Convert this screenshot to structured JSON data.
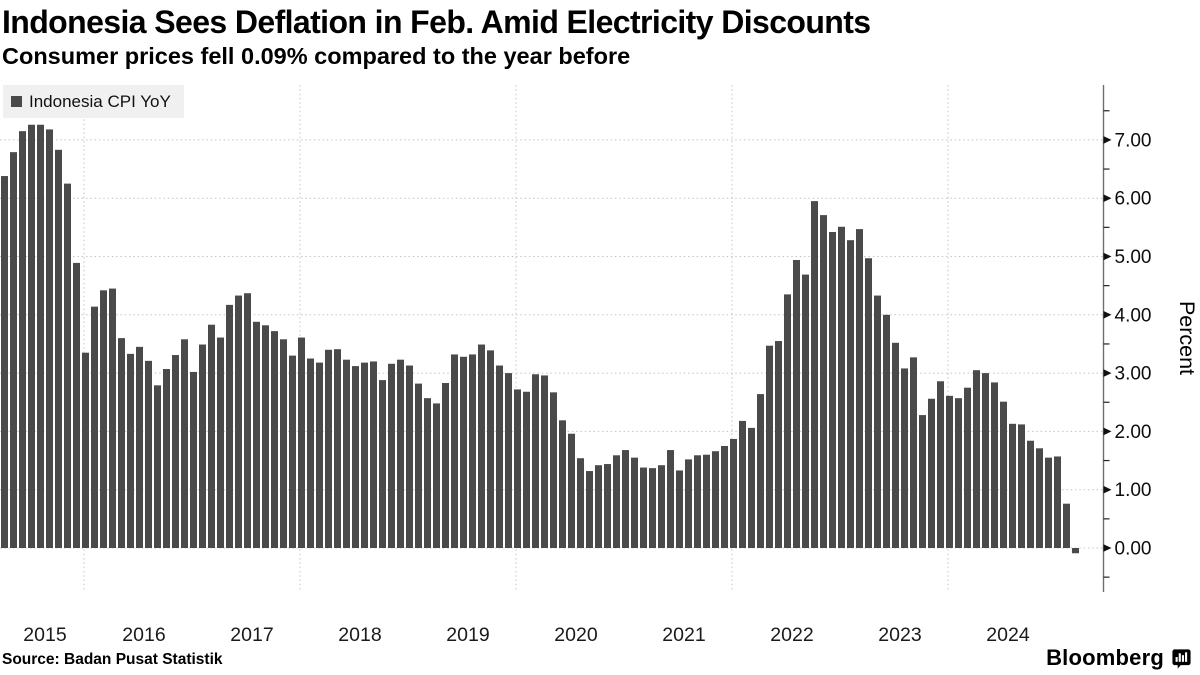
{
  "header": {
    "title": "Indonesia Sees Deflation in Feb. Amid Electricity Discounts",
    "subtitle": "Consumer prices fell 0.09% compared to the year before"
  },
  "legend": {
    "label": "Indonesia CPI YoY"
  },
  "chart_data": {
    "type": "bar",
    "title": "Indonesia Sees Deflation in Feb. Amid Electricity Discounts",
    "subtitle": "Consumer prices fell 0.09% compared to the year before",
    "series": [
      {
        "name": "Indonesia CPI YoY",
        "start_month": "2015-03",
        "end_month": "2025-02",
        "frequency": "monthly",
        "values": [
          6.38,
          6.79,
          7.15,
          7.26,
          7.26,
          7.18,
          6.83,
          6.25,
          4.89,
          3.35,
          4.14,
          4.42,
          4.45,
          3.6,
          3.33,
          3.45,
          3.21,
          2.79,
          3.07,
          3.31,
          3.58,
          3.02,
          3.49,
          3.83,
          3.61,
          4.17,
          4.33,
          4.37,
          3.88,
          3.82,
          3.72,
          3.58,
          3.3,
          3.61,
          3.25,
          3.18,
          3.4,
          3.41,
          3.23,
          3.12,
          3.18,
          3.2,
          2.88,
          3.16,
          3.23,
          3.13,
          2.82,
          2.57,
          2.48,
          2.83,
          3.32,
          3.28,
          3.32,
          3.49,
          3.39,
          3.13,
          3.0,
          2.72,
          2.68,
          2.98,
          2.96,
          2.67,
          2.19,
          1.96,
          1.54,
          1.32,
          1.42,
          1.44,
          1.59,
          1.68,
          1.55,
          1.38,
          1.37,
          1.42,
          1.68,
          1.33,
          1.52,
          1.59,
          1.6,
          1.66,
          1.75,
          1.87,
          2.18,
          2.06,
          2.64,
          3.47,
          3.55,
          4.35,
          4.94,
          4.69,
          5.95,
          5.71,
          5.42,
          5.51,
          5.28,
          5.47,
          4.97,
          4.33,
          4.0,
          3.52,
          3.08,
          3.27,
          2.28,
          2.56,
          2.86,
          2.61,
          2.57,
          2.75,
          3.05,
          3.0,
          2.84,
          2.51,
          2.13,
          2.12,
          1.84,
          1.71,
          1.55,
          1.57,
          0.76,
          -0.09
        ]
      }
    ],
    "x_tick_labels": [
      "2015",
      "2016",
      "2017",
      "2018",
      "2019",
      "2020",
      "2021",
      "2022",
      "2023",
      "2024"
    ],
    "x_gridline_years": [
      2016,
      2018,
      2020,
      2022,
      2024
    ],
    "y_axis": {
      "label": "Percent",
      "tick_labels": [
        "0.00",
        "1.00",
        "2.00",
        "3.00",
        "4.00",
        "5.00",
        "6.00",
        "7.00"
      ],
      "tick_values": [
        0,
        1,
        2,
        3,
        4,
        5,
        6,
        7
      ],
      "minor_tick_step": 0.5,
      "ylim": [
        -0.75,
        7.94
      ],
      "side": "right"
    },
    "grid": {
      "horizontal": true,
      "vertical": true,
      "style": "dotted"
    },
    "bar_color": "#4a4a4a",
    "legend_position": "top-left"
  },
  "footer": {
    "source": "Source: Badan Pusat Statistik",
    "brand": "Bloomberg"
  }
}
